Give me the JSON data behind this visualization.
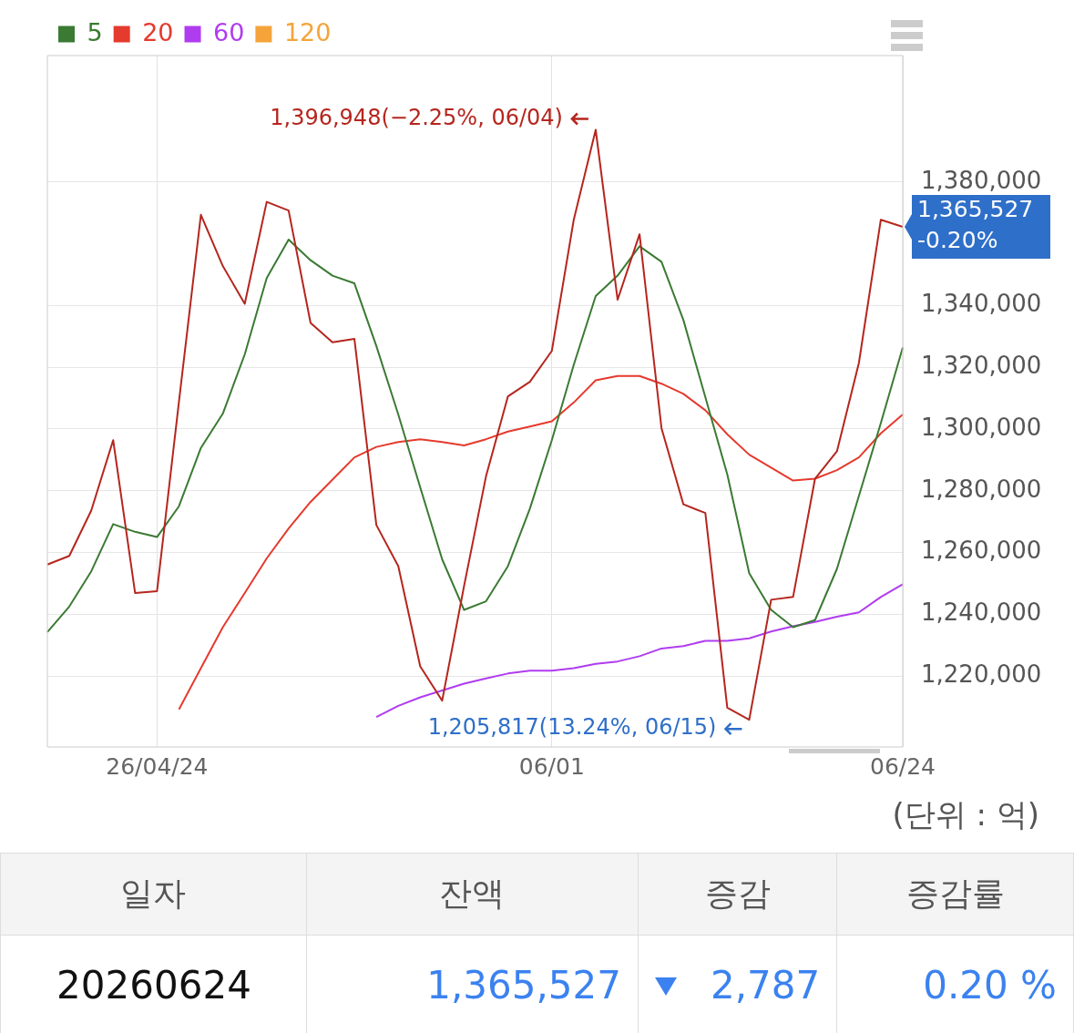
{
  "chart_data": {
    "type": "line",
    "categories": [
      null,
      null,
      null,
      null,
      null,
      "26/04/24",
      null,
      null,
      null,
      null,
      null,
      null,
      null,
      null,
      null,
      null,
      null,
      null,
      null,
      null,
      null,
      null,
      null,
      "06/01",
      null,
      null,
      null,
      null,
      null,
      null,
      null,
      null,
      null,
      null,
      null,
      null,
      null,
      null,
      null,
      "06/24"
    ],
    "series": [
      {
        "color": "#b5261e",
        "values": [
          1256100,
          1258900,
          1273600,
          1296400,
          1246900,
          1247500,
          1308900,
          1369400,
          1352800,
          1340600,
          1373600,
          1370800,
          1334400,
          1328100,
          1329200,
          1268900,
          1255600,
          1223100,
          1212000,
          1249200,
          1284700,
          1310600,
          1315300,
          1325300,
          1367800,
          1396948,
          1341900,
          1363100,
          1300300,
          1275600,
          1272800,
          1209700,
          1205817,
          1244700,
          1245600,
          1283900,
          1292800,
          1321400,
          1367800,
          1365527
        ]
      },
      {
        "name": "5",
        "color": "#3b7a33",
        "values": [
          1234200,
          1242500,
          1253900,
          1269200,
          1266700,
          1265000,
          1275000,
          1293900,
          1305000,
          1324200,
          1348900,
          1361400,
          1354700,
          1349700,
          1347200,
          1326900,
          1304700,
          1281100,
          1257800,
          1241400,
          1244200,
          1255600,
          1274200,
          1296400,
          1320800,
          1343100,
          1349700,
          1359200,
          1354200,
          1335300,
          1310300,
          1285300,
          1253300,
          1241400,
          1235800,
          1238100,
          1254700,
          1278300,
          1301900,
          1326400
        ]
      },
      {
        "name": "20",
        "color": "#e53a2e",
        "values": [
          null,
          null,
          null,
          null,
          null,
          null,
          1209200,
          1222500,
          1235800,
          1246900,
          1258100,
          1267800,
          1276400,
          1283600,
          1290800,
          1294200,
          1295800,
          1296700,
          1295800,
          1294700,
          1296700,
          1299200,
          1300800,
          1302500,
          1308600,
          1315800,
          1317200,
          1317200,
          1314700,
          1311400,
          1306100,
          1298300,
          1291700,
          1287500,
          1283300,
          1283900,
          1286700,
          1290800,
          1298600,
          1304700
        ]
      },
      {
        "name": "60",
        "color": "#b03cf0",
        "values": [
          null,
          null,
          null,
          null,
          null,
          null,
          null,
          null,
          null,
          null,
          null,
          null,
          null,
          null,
          null,
          1206700,
          1210300,
          1213100,
          1215300,
          1217500,
          1219200,
          1220800,
          1221700,
          1221700,
          1222500,
          1223900,
          1224700,
          1226400,
          1228900,
          1229700,
          1231400,
          1231400,
          1232200,
          1234400,
          1236100,
          1237500,
          1239200,
          1240600,
          1245600,
          1249700
        ]
      },
      {
        "name": "120",
        "color": "#f4a43a",
        "values": [
          null,
          null,
          null,
          null,
          null,
          null,
          null,
          null,
          null,
          null,
          null,
          null,
          null,
          null,
          null,
          null,
          null,
          null,
          null,
          null,
          null,
          null,
          null,
          null,
          null,
          null,
          null,
          null,
          null,
          null,
          null,
          null,
          null,
          null,
          null,
          null,
          null,
          null,
          null,
          null
        ]
      }
    ],
    "ylim": [
      1197000,
      1421000
    ],
    "yticks": [
      {
        "value": 1220000,
        "label": "1,220,000"
      },
      {
        "value": 1240000,
        "label": "1,240,000"
      },
      {
        "value": 1260000,
        "label": "1,260,000"
      },
      {
        "value": 1280000,
        "label": "1,280,000"
      },
      {
        "value": 1300000,
        "label": "1,300,000"
      },
      {
        "value": 1320000,
        "label": "1,320,000"
      },
      {
        "value": 1340000,
        "label": "1,340,000"
      },
      {
        "value": 1380000,
        "label": "1,380,000"
      }
    ],
    "grid": true,
    "legend": "top left",
    "marker": "none",
    "line_style": "solid",
    "annotations": [
      "1,396,948(−2.25%, 06/04)",
      "1,205,817(13.24%, 06/15)",
      "1,365,527\n-0.20%",
      "(단위 : 억)",
      "일자",
      "잔액",
      "증감",
      "증감률",
      "20260624",
      "1,365,527",
      "2,787",
      "0.20 %"
    ]
  }
}
